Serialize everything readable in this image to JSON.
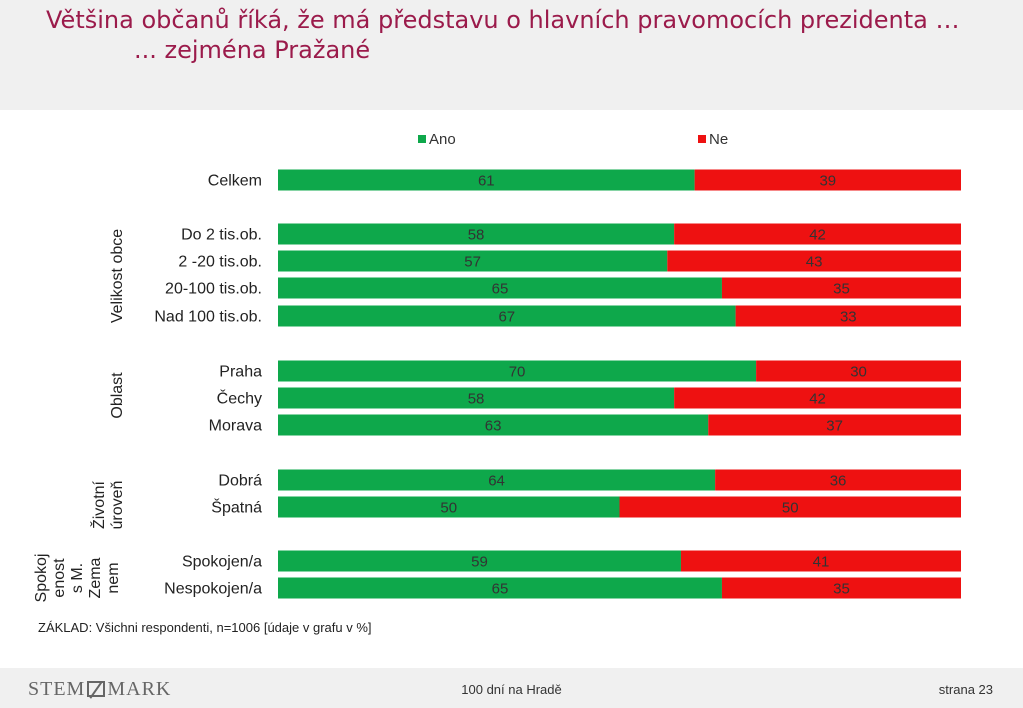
{
  "header": {
    "title_line1": "Většina občanů říká, že má představu o hlavních pravomocích prezidenta …",
    "title_line2": "... zejména Pražané"
  },
  "chart_data": {
    "type": "bar",
    "stacked": true,
    "orientation": "horizontal",
    "legend": {
      "position": "top",
      "entries": [
        "Ano",
        "Ne"
      ]
    },
    "colors": {
      "Ano": "#0ea84b",
      "Ne": "#ee1111"
    },
    "xlim": [
      0,
      100
    ],
    "groups": [
      {
        "label": "",
        "categories": [
          "Celkem"
        ]
      },
      {
        "label": "Velikost obce",
        "categories": [
          "Do 2 tis.ob.",
          "2 -20 tis.ob.",
          "20-100 tis.ob.",
          "Nad 100 tis.ob."
        ]
      },
      {
        "label": "Oblast",
        "categories": [
          "Praha",
          "Čechy",
          "Morava"
        ]
      },
      {
        "label": "Životní úroveň",
        "label_lines": [
          "Životní",
          "úroveň"
        ],
        "categories": [
          "Dobrá",
          "Špatná"
        ]
      },
      {
        "label": "Spokojenost s M. Zemanem",
        "label_lines": [
          "Spokoj",
          "enost",
          "s M.",
          "Zema",
          "nem"
        ],
        "categories": [
          "Spokojen/a",
          "Nespokojen/a"
        ]
      }
    ],
    "categories": [
      "Celkem",
      "Do 2 tis.ob.",
      "2 -20 tis.ob.",
      "20-100 tis.ob.",
      "Nad 100 tis.ob.",
      "Praha",
      "Čechy",
      "Morava",
      "Dobrá",
      "Špatná",
      "Spokojen/a",
      "Nespokojen/a"
    ],
    "series": [
      {
        "name": "Ano",
        "values": [
          61,
          58,
          57,
          65,
          67,
          70,
          58,
          63,
          64,
          50,
          59,
          65
        ]
      },
      {
        "name": "Ne",
        "values": [
          39,
          42,
          43,
          35,
          33,
          30,
          42,
          37,
          36,
          50,
          41,
          35
        ]
      }
    ]
  },
  "base_note": "ZÁKLAD: Všichni respondenti, n=1006 [údaje v grafu v %]",
  "footer": {
    "logo_left": "STEM",
    "logo_right": "MARK",
    "center": "100 dní na Hradě",
    "page": "strana 23"
  }
}
